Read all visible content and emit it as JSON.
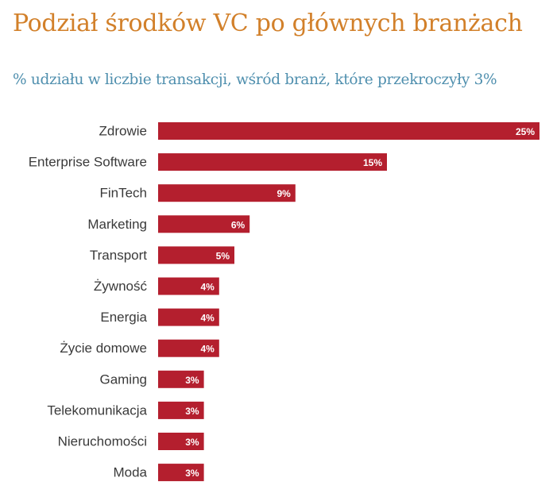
{
  "header": {
    "title": "Podział środków VC po głównych branżach",
    "subtitle": "% udziału w liczbie transakcji, wśród branż, które przekroczyły 3%"
  },
  "colors": {
    "title": "#d2802a",
    "subtitle": "#4f8fae",
    "bar": "#b41f2e",
    "bar_label": "#ffffff"
  },
  "chart_data": {
    "type": "bar",
    "orientation": "horizontal",
    "categories": [
      "Zdrowie",
      "Enterprise Software",
      "FinTech",
      "Marketing",
      "Transport",
      "Żywność",
      "Energia",
      "Życie domowe",
      "Gaming",
      "Telekomunikacja",
      "Nieruchomości",
      "Moda"
    ],
    "values": [
      25,
      15,
      9,
      6,
      5,
      4,
      4,
      4,
      3,
      3,
      3,
      3
    ],
    "value_labels": [
      "25%",
      "15%",
      "9%",
      "6%",
      "5%",
      "4%",
      "4%",
      "4%",
      "3%",
      "3%",
      "3%",
      "3%"
    ],
    "title": "Podział środków VC po głównych branżach",
    "subtitle": "% udziału w liczbie transakcji, wśród branż, które przekroczyły 3%",
    "xlabel": "",
    "ylabel": "",
    "xlim": [
      0,
      25
    ],
    "grid": false,
    "legend": "none"
  }
}
